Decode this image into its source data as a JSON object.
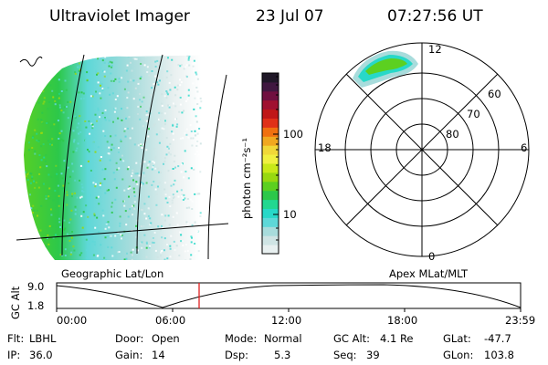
{
  "header": {
    "title": "Ultraviolet Imager",
    "date": "23 Jul 07",
    "time": "07:27:56 UT"
  },
  "geo_panel": {
    "caption": "Geographic Lat/Lon"
  },
  "colorbar": {
    "label": "photon cm⁻²s⁻¹",
    "ticks": [
      "100",
      "10"
    ],
    "colors": [
      "#e8f0f0",
      "#cfe4e4",
      "#a8dcdc",
      "#5ed8d8",
      "#28d8c8",
      "#22d890",
      "#2cc84a",
      "#5cd020",
      "#98d810",
      "#c8e818",
      "#f0f040",
      "#f0d838",
      "#f0a820",
      "#f07010",
      "#e03018",
      "#c01818",
      "#a01030",
      "#701040",
      "#401840",
      "#201828"
    ],
    "accent_colors": {
      "green": "#5cd020",
      "cyan": "#5ed8d8",
      "dark": "#201828"
    }
  },
  "polar_panel": {
    "caption": "Apex MLat/MLT",
    "lat_labels": [
      "60",
      "70",
      "80"
    ],
    "mlt_labels": {
      "top": "12",
      "left": "18",
      "right": "6",
      "bottom": "0"
    }
  },
  "altitude_plot": {
    "ylabel": "GC Alt",
    "y_ticks": [
      "9.0",
      "1.8"
    ],
    "x_ticks": [
      "00:00",
      "06:00",
      "12:00",
      "18:00",
      "23:59"
    ],
    "marker_color": "#e02020"
  },
  "status": {
    "flt_label": "Flt:",
    "flt_value": "LBHL",
    "ip_label": "IP:",
    "ip_value": "36.0",
    "door_label": "Door:",
    "door_value": "Open",
    "gain_label": "Gain:",
    "gain_value": "14",
    "mode_label": "Mode:",
    "mode_value": "Normal",
    "dsp_label": "Dsp:",
    "dsp_value": "5.3",
    "gcalt_label": "GC Alt:",
    "gcalt_value": "4.1 Re",
    "seq_label": "Seq:",
    "seq_value": "39",
    "glat_label": "GLat:",
    "glat_value": "-47.7",
    "glon_label": "GLon:",
    "glon_value": "103.8"
  }
}
